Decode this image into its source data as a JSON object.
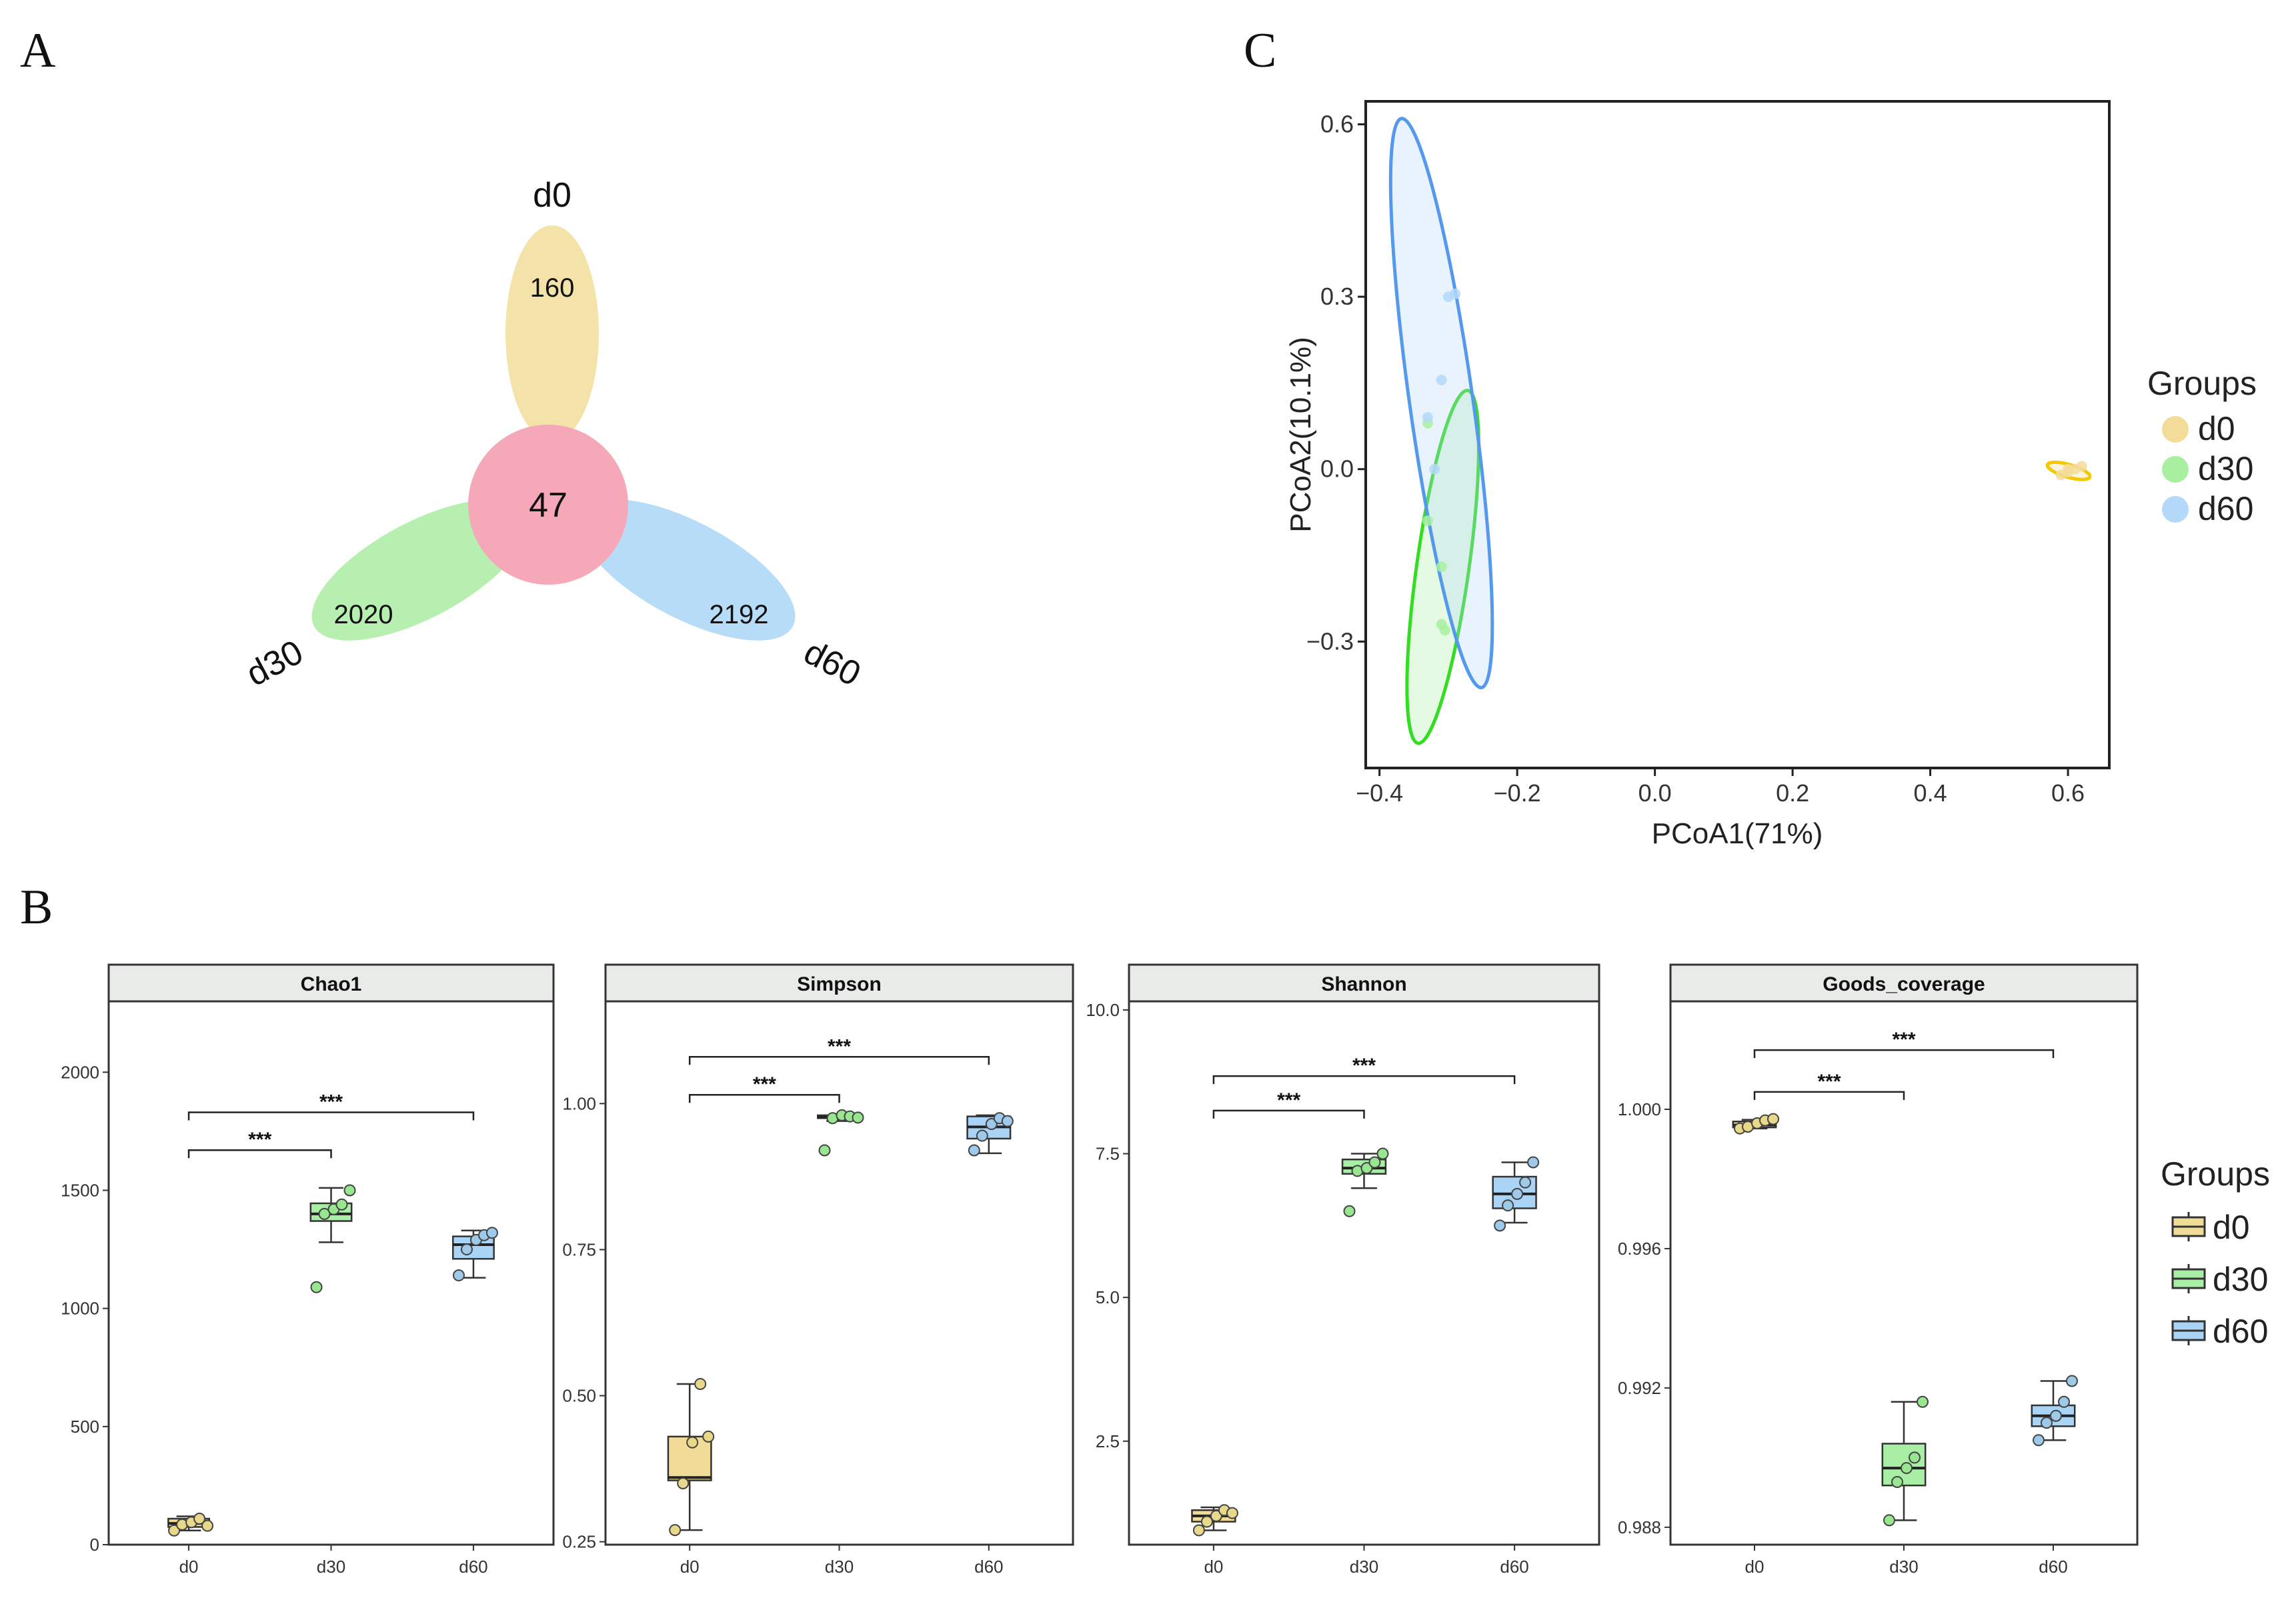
{
  "panels": {
    "A": "A",
    "B": "B",
    "C": "C"
  },
  "chart_data": [
    {
      "type": "venn",
      "panel": "A",
      "sets": [
        {
          "name": "d0",
          "unique": 160,
          "color": "#f3e3a8"
        },
        {
          "name": "d30",
          "unique": 2020,
          "color": "#b6efb0"
        },
        {
          "name": "d60",
          "unique": 2192,
          "color": "#b6dcf8"
        }
      ],
      "shared_all": 47,
      "core_color": "#f5a9b8"
    },
    {
      "type": "scatter",
      "panel": "C",
      "xlabel": "PCoA1(71%)",
      "ylabel": "PCoA2(10.1%)",
      "xlim": [
        -0.42,
        0.66
      ],
      "ylim": [
        -0.52,
        0.64
      ],
      "xticks": [
        -0.4,
        -0.2,
        0.0,
        0.2,
        0.4,
        0.6
      ],
      "xtick_labels": [
        "−0.4",
        "−0.2",
        "0.0",
        "0.2",
        "0.4",
        "0.6"
      ],
      "yticks": [
        -0.3,
        0.0,
        0.3,
        0.6
      ],
      "ytick_labels": [
        "−0.3",
        "0.0",
        "0.3",
        "0.6"
      ],
      "legend": {
        "title": "Groups",
        "position": "right"
      },
      "series": [
        {
          "name": "d0",
          "fill": "#f3dc9a",
          "stroke": "#f5c800",
          "points": [
            [
              0.59,
              -0.01
            ],
            [
              0.6,
              -0.005
            ],
            [
              0.61,
              0.0
            ],
            [
              0.62,
              0.005
            ],
            [
              0.6,
              0.0
            ]
          ],
          "ellipse": {
            "cx": 0.601,
            "cy": -0.003,
            "rx": 0.032,
            "ry": 0.011,
            "angle_deg": 16
          }
        },
        {
          "name": "d30",
          "fill": "#a8f0a0",
          "stroke": "#33dd22",
          "points": [
            [
              -0.33,
              0.08
            ],
            [
              -0.33,
              -0.09
            ],
            [
              -0.31,
              -0.17
            ],
            [
              -0.31,
              -0.27
            ],
            [
              -0.305,
              -0.28
            ]
          ],
          "ellipse": {
            "cx": -0.308,
            "cy": -0.17,
            "rx": 0.038,
            "ry": 0.31,
            "angle_deg": 8
          }
        },
        {
          "name": "d60",
          "fill": "#b4d8f8",
          "stroke": "#5599ee",
          "points": [
            [
              -0.3,
              0.3
            ],
            [
              -0.29,
              0.305
            ],
            [
              -0.31,
              0.155
            ],
            [
              -0.33,
              0.09
            ],
            [
              -0.32,
              0.0
            ]
          ],
          "ellipse": {
            "cx": -0.31,
            "cy": 0.115,
            "rx": 0.046,
            "ry": 0.5,
            "angle_deg": -8
          }
        }
      ]
    },
    {
      "type": "box",
      "panel": "B",
      "title": "Chao1",
      "categories": [
        "d0",
        "d30",
        "d60"
      ],
      "ylim": [
        0,
        2300
      ],
      "yticks": [
        0,
        500,
        1000,
        1500,
        2000
      ],
      "ytick_labels": [
        "0",
        "500",
        "1000",
        "1500",
        "2000"
      ],
      "boxes": [
        {
          "group": "d0",
          "min": 60,
          "q1": 75,
          "median": 90,
          "q3": 110,
          "max": 120
        },
        {
          "group": "d30",
          "min": 1280,
          "q1": 1370,
          "median": 1400,
          "q3": 1445,
          "max": 1510
        },
        {
          "group": "d60",
          "min": 1130,
          "q1": 1210,
          "median": 1270,
          "q3": 1305,
          "max": 1330
        }
      ],
      "points": [
        [
          60,
          85,
          95,
          110,
          80
        ],
        [
          1090,
          1400,
          1420,
          1440,
          1500
        ],
        [
          1140,
          1250,
          1290,
          1310,
          1320
        ]
      ],
      "significance": [
        {
          "from": "d0",
          "to": "d30",
          "label": "***",
          "y": 1670
        },
        {
          "from": "d0",
          "to": "d60",
          "label": "***",
          "y": 1830
        }
      ]
    },
    {
      "type": "box",
      "panel": "B",
      "title": "Simpson",
      "categories": [
        "d0",
        "d30",
        "d60"
      ],
      "ylim": [
        0.245,
        1.175
      ],
      "yticks": [
        0.25,
        0.5,
        0.75,
        1.0
      ],
      "ytick_labels": [
        "0.25",
        "0.50",
        "0.75",
        "1.00"
      ],
      "boxes": [
        {
          "group": "d0",
          "min": 0.27,
          "q1": 0.355,
          "median": 0.36,
          "q3": 0.43,
          "max": 0.52
        },
        {
          "group": "d30",
          "min": 0.97,
          "q1": 0.975,
          "median": 0.977,
          "q3": 0.98,
          "max": 0.98
        },
        {
          "group": "d60",
          "min": 0.915,
          "q1": 0.94,
          "median": 0.96,
          "q3": 0.978,
          "max": 0.98
        }
      ],
      "points": [
        [
          0.27,
          0.35,
          0.42,
          0.52,
          0.43
        ],
        [
          0.92,
          0.975,
          0.98,
          0.978,
          0.976
        ],
        [
          0.92,
          0.945,
          0.965,
          0.975,
          0.97
        ]
      ],
      "significance": [
        {
          "from": "d0",
          "to": "d30",
          "label": "***",
          "y": 1.015
        },
        {
          "from": "d0",
          "to": "d60",
          "label": "***",
          "y": 1.08
        }
      ]
    },
    {
      "type": "box",
      "panel": "B",
      "title": "Shannon",
      "categories": [
        "d0",
        "d30",
        "d60"
      ],
      "ylim": [
        0.7,
        10.15
      ],
      "yticks": [
        2.5,
        5.0,
        7.5,
        10.0
      ],
      "ytick_labels": [
        "2.5",
        "5.0",
        "7.5",
        "10.0"
      ],
      "boxes": [
        {
          "group": "d0",
          "min": 0.95,
          "q1": 1.1,
          "median": 1.2,
          "q3": 1.3,
          "max": 1.35
        },
        {
          "group": "d30",
          "min": 6.9,
          "q1": 7.15,
          "median": 7.25,
          "q3": 7.4,
          "max": 7.5
        },
        {
          "group": "d60",
          "min": 6.3,
          "q1": 6.55,
          "median": 6.8,
          "q3": 7.1,
          "max": 7.35
        }
      ],
      "points": [
        [
          0.95,
          1.1,
          1.2,
          1.3,
          1.25
        ],
        [
          6.5,
          7.2,
          7.25,
          7.35,
          7.5
        ],
        [
          6.25,
          6.6,
          6.8,
          7.0,
          7.35
        ]
      ],
      "significance": [
        {
          "from": "d0",
          "to": "d30",
          "label": "***",
          "y": 8.25
        },
        {
          "from": "d0",
          "to": "d60",
          "label": "***",
          "y": 8.85
        }
      ]
    },
    {
      "type": "box",
      "panel": "B",
      "title": "Goods_coverage",
      "categories": [
        "d0",
        "d30",
        "d60"
      ],
      "ylim": [
        0.9875,
        1.0031
      ],
      "yticks": [
        0.988,
        0.992,
        0.996,
        1.0
      ],
      "ytick_labels": [
        "0.988",
        "0.992",
        "0.996",
        "1.000"
      ],
      "boxes": [
        {
          "group": "d0",
          "min": 0.99945,
          "q1": 0.99948,
          "median": 0.99955,
          "q3": 0.99965,
          "max": 0.9997
        },
        {
          "group": "d30",
          "min": 0.9882,
          "q1": 0.9892,
          "median": 0.9897,
          "q3": 0.9904,
          "max": 0.9916
        },
        {
          "group": "d60",
          "min": 0.9905,
          "q1": 0.9909,
          "median": 0.9912,
          "q3": 0.9915,
          "max": 0.9922
        }
      ],
      "points": [
        [
          0.99945,
          0.9995,
          0.9996,
          0.99968,
          0.99972
        ],
        [
          0.9882,
          0.9893,
          0.9897,
          0.99,
          0.9916
        ],
        [
          0.9905,
          0.991,
          0.9912,
          0.9916,
          0.9922
        ]
      ],
      "significance": [
        {
          "from": "d0",
          "to": "d30",
          "label": "***",
          "y": 1.0005
        },
        {
          "from": "d0",
          "to": "d60",
          "label": "***",
          "y": 1.0017
        }
      ]
    }
  ],
  "box_legend": {
    "title": "Groups",
    "items": [
      {
        "name": "d0",
        "fill": "#f0dc96"
      },
      {
        "name": "d30",
        "fill": "#a8eea4"
      },
      {
        "name": "d60",
        "fill": "#aad4f5"
      }
    ]
  },
  "group_colors": {
    "d0": {
      "box": "#f0dc96",
      "point": "#e8d88a"
    },
    "d30": {
      "box": "#a8eea4",
      "point": "#98e690"
    },
    "d60": {
      "box": "#aad4f5",
      "point": "#9ecaea"
    }
  }
}
